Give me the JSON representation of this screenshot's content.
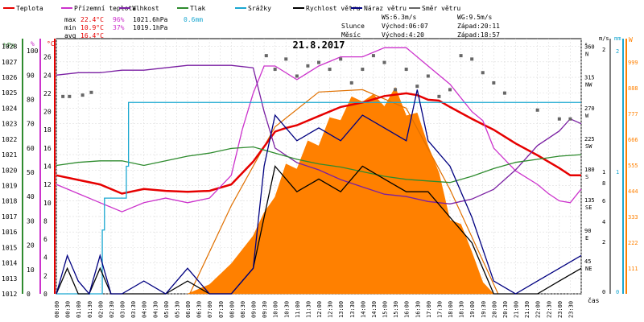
{
  "chart_data": {
    "type": "line",
    "title": "21.8.2017",
    "legend": [
      {
        "name": "Teplota",
        "color": "#e60000"
      },
      {
        "name": "Přízemní teplota",
        "color": "#cc33cc"
      },
      {
        "name": "Vlhkost",
        "color": "#7a1fa2"
      },
      {
        "name": "Tlak",
        "color": "#2e8b2e"
      },
      {
        "name": "Srážky",
        "color": "#1aa7d0"
      },
      {
        "name": "Rychlost větru",
        "color": "#000000"
      },
      {
        "name": "Náraz větru",
        "color": "#000080"
      },
      {
        "name": "Směr větru",
        "color": "#666666"
      }
    ],
    "stats": {
      "max_label": "max",
      "max_temp": "22.4°C",
      "max_hum": "96%",
      "max_press": "1021.6hPa",
      "max_rain": "0.6mm",
      "min_label": "min",
      "min_temp": "10.9°C",
      "min_hum": "37%",
      "min_press": "1019.1hPa",
      "avg_label": "avg",
      "avg_temp": "16.4°C",
      "ws": "WS:6.3m/s",
      "wg": "WG:9.5m/s",
      "sun_label": "Slunce",
      "sunrise": "Východ:06:07",
      "sunset": "Západ:20:11",
      "moon_label": "Měsíc",
      "moonrise": "Východ:4:20",
      "moonset": "Západ:18:57"
    },
    "axes": {
      "hpa_title": "hPa",
      "hpa_ticks": [
        "1028",
        "1027",
        "1026",
        "1025",
        "1024",
        "1023",
        "1022",
        "1021",
        "1020",
        "1019",
        "1018",
        "1017",
        "1016",
        "1015",
        "1014",
        "1013",
        "1012"
      ],
      "pct_title": "%",
      "pct_ticks": [
        "100",
        "90",
        "80",
        "70",
        "60",
        "50",
        "40",
        "30",
        "20",
        "10",
        "0"
      ],
      "c_title": "°C",
      "c_ticks": [
        "26",
        "24",
        "22",
        "20",
        "18",
        "16",
        "14",
        "12",
        "10",
        "8",
        "6",
        "4",
        "2",
        "0"
      ],
      "deg_title": "°",
      "dir_ticks": [
        {
          "deg": "360",
          "dir": "N"
        },
        {
          "deg": "315",
          "dir": "NW"
        },
        {
          "deg": "270",
          "dir": "W"
        },
        {
          "deg": "225",
          "dir": "SW"
        },
        {
          "deg": "180",
          "dir": "S"
        },
        {
          "deg": "135",
          "dir": "SE"
        },
        {
          "deg": "90",
          "dir": "E"
        },
        {
          "deg": "45",
          "dir": "NE"
        }
      ],
      "ms_title": "m/s",
      "ms_ticks": [
        "2",
        "1",
        "8",
        "6",
        "4",
        "2",
        "0"
      ],
      "mm_title": "mm",
      "mm_ticks": [
        "2",
        "1",
        "0"
      ],
      "w_title": "W",
      "w_ticks": [
        "999",
        "888",
        "777",
        "666",
        "555",
        "444",
        "333",
        "222",
        "111"
      ],
      "x_label": "čas",
      "x_ticks": [
        "00:00",
        "00:30",
        "01:00",
        "01:30",
        "02:00",
        "02:30",
        "03:00",
        "03:30",
        "04:00",
        "04:30",
        "05:00",
        "05:30",
        "06:00",
        "06:30",
        "07:00",
        "07:30",
        "08:00",
        "08:30",
        "09:00",
        "09:30",
        "10:00",
        "10:30",
        "11:00",
        "11:30",
        "12:00",
        "12:30",
        "13:00",
        "13:30",
        "14:00",
        "14:30",
        "15:00",
        "15:30",
        "16:00",
        "16:30",
        "17:00",
        "17:30",
        "18:00",
        "18:30",
        "19:00",
        "19:30",
        "20:00",
        "20:30",
        "21:00",
        "21:30",
        "22:00",
        "22:30",
        "23:00",
        "23:30"
      ]
    },
    "x_range_hours": [
      0,
      24
    ],
    "series": [
      {
        "name": "Teplota",
        "unit": "°C",
        "x": [
          0,
          1,
          2,
          3,
          4,
          5,
          6,
          7,
          8,
          9,
          10,
          10.5,
          11,
          11.5,
          12,
          13,
          14,
          15,
          16,
          16.5,
          17,
          17.5,
          18,
          19,
          20,
          21,
          22,
          23,
          23.5,
          24
        ],
        "values": [
          13,
          12.5,
          12,
          11,
          11.5,
          11.3,
          11.2,
          11.3,
          12,
          14.5,
          17.8,
          18.2,
          18.5,
          19,
          19.5,
          20.5,
          21,
          21.7,
          22,
          21.8,
          21.3,
          21.2,
          20.5,
          19.2,
          18,
          16.5,
          15.2,
          13.8,
          13,
          13
        ]
      },
      {
        "name": "Přízemní teplota",
        "unit": "°C",
        "x": [
          0,
          1,
          2,
          3,
          4,
          5,
          6,
          7,
          8,
          8.5,
          9,
          9.5,
          10,
          11,
          12,
          13,
          14,
          15,
          16,
          17,
          18,
          19,
          19.5,
          20,
          21,
          22,
          22.5,
          23,
          23.5,
          24
        ],
        "values": [
          12,
          11,
          10,
          9,
          10,
          10.5,
          10,
          10.5,
          13,
          18,
          22,
          25,
          25,
          23.5,
          25,
          26,
          26,
          27,
          27,
          25,
          23,
          20,
          19,
          16,
          13.5,
          12,
          11,
          10.2,
          10,
          11.5
        ]
      },
      {
        "name": "Vlhkost",
        "unit": "%",
        "x": [
          0,
          1,
          2,
          3,
          4,
          5,
          6,
          7,
          8,
          9,
          9.5,
          10,
          11,
          12,
          13,
          14,
          15,
          16,
          17,
          18,
          19,
          20,
          21,
          22,
          23,
          23.5,
          24
        ],
        "values": [
          90,
          91,
          91,
          92,
          92,
          93,
          94,
          94,
          94,
          93,
          75,
          60,
          54,
          51,
          47,
          44,
          41,
          40,
          38,
          37,
          39,
          43,
          51,
          61,
          67,
          72,
          70
        ]
      },
      {
        "name": "Tlak",
        "unit": "hPa",
        "x": [
          0,
          1,
          2,
          3,
          4,
          5,
          6,
          7,
          8,
          9,
          10,
          11,
          12,
          13,
          14,
          15,
          16,
          17,
          18,
          19,
          20,
          21,
          22,
          23,
          24
        ],
        "values": [
          1020.3,
          1020.5,
          1020.6,
          1020.6,
          1020.3,
          1020.6,
          1020.9,
          1021.1,
          1021.4,
          1021.5,
          1021.1,
          1020.7,
          1020.4,
          1020.2,
          1019.9,
          1019.6,
          1019.4,
          1019.3,
          1019.2,
          1019.6,
          1020.1,
          1020.5,
          1020.7,
          1020.9,
          1021.0
        ]
      },
      {
        "name": "Srážky",
        "unit": "mm",
        "x": [
          0,
          1.7,
          2.1,
          2.2,
          3.2,
          3.3,
          24
        ],
        "values": [
          0,
          0,
          0.2,
          0.3,
          0.4,
          0.6,
          0.6
        ]
      },
      {
        "name": "Rychlost větru",
        "unit": "m/s",
        "x": [
          0,
          0.5,
          1,
          1.5,
          2,
          2.5,
          3,
          4,
          5,
          6,
          7,
          8,
          9,
          9.5,
          10,
          11,
          12,
          13,
          14,
          15,
          16,
          17,
          18,
          19,
          20,
          21,
          22,
          23,
          24
        ],
        "values": [
          0,
          1,
          0,
          0,
          1,
          0,
          0,
          0,
          0,
          0.5,
          0,
          0,
          1,
          3,
          5,
          4,
          4.5,
          4,
          5,
          4.5,
          4,
          4,
          3,
          2,
          0,
          0,
          0,
          0.5,
          1
        ]
      },
      {
        "name": "Náraz větru",
        "unit": "m/s",
        "x": [
          0,
          0.5,
          1,
          1.5,
          2,
          2.5,
          3,
          4,
          5,
          6,
          7,
          8,
          9,
          9.5,
          10,
          11,
          12,
          13,
          14,
          15,
          16,
          16.5,
          17,
          18,
          19,
          20,
          21,
          22,
          23,
          24
        ],
        "values": [
          0,
          1.5,
          0.5,
          0,
          1.5,
          0,
          0,
          0.5,
          0,
          1,
          0,
          0,
          1,
          5,
          7,
          6,
          6.5,
          6,
          7,
          6.5,
          6,
          8,
          6,
          5,
          3,
          0.5,
          0,
          0.5,
          1,
          1.5
        ]
      },
      {
        "name": "Směr větru",
        "unit": "°",
        "x": [
          0.3,
          0.6,
          1.2,
          1.6,
          9.6,
          10,
          10.5,
          11,
          11.5,
          12,
          12.5,
          13,
          13.5,
          14,
          14.5,
          15,
          15.5,
          16,
          16.5,
          17,
          17.5,
          18,
          18.5,
          19,
          19.5,
          20,
          20.5,
          22,
          23,
          23.5
        ],
        "values": [
          290,
          290,
          292,
          296,
          350,
          330,
          345,
          320,
          335,
          340,
          330,
          345,
          310,
          330,
          350,
          340,
          300,
          330,
          305,
          320,
          290,
          300,
          350,
          345,
          325,
          310,
          295,
          270,
          257,
          257
        ]
      }
    ],
    "solar_radiation": {
      "unit": "W",
      "x": [
        6,
        7,
        8,
        9,
        9.5,
        10,
        10.5,
        11,
        11.5,
        12,
        12.5,
        13,
        13.5,
        14,
        14.5,
        15,
        15.5,
        16,
        16.5,
        17,
        17.5,
        18,
        18.5,
        19,
        19.5,
        20
      ],
      "values": [
        0,
        40,
        130,
        250,
        350,
        480,
        560,
        600,
        660,
        700,
        760,
        810,
        850,
        890,
        860,
        870,
        890,
        830,
        780,
        700,
        520,
        380,
        300,
        180,
        50,
        0
      ],
      "theoretical_x": [
        6.1,
        8,
        10,
        12,
        14,
        16,
        18,
        20.2
      ],
      "theoretical_values": [
        0,
        380,
        720,
        870,
        880,
        800,
        450,
        0
      ]
    }
  }
}
